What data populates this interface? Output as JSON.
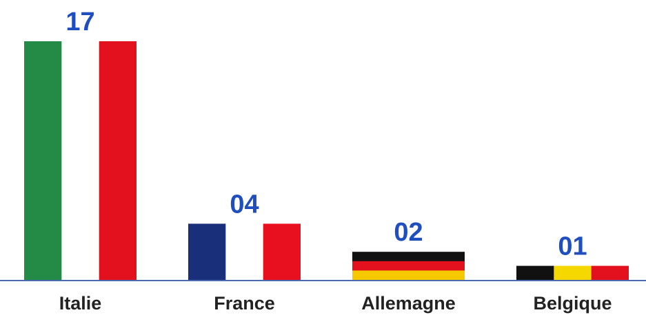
{
  "chart_data": {
    "type": "bar",
    "categories": [
      "Italie",
      "France",
      "Allemagne",
      "Belgique"
    ],
    "values": [
      17,
      4,
      2,
      1
    ],
    "value_labels": [
      "17",
      "04",
      "02",
      "01"
    ],
    "stripe_direction": [
      "vertical",
      "vertical",
      "horizontal",
      "vertical"
    ],
    "bar_colors": [
      [
        "#238b45",
        "#ffffff",
        "#e3101e"
      ],
      [
        "#1a2f7a",
        "#ffffff",
        "#e8101e"
      ],
      [
        "#111111",
        "#e3101e",
        "#f5c800"
      ],
      [
        "#111111",
        "#f5d800",
        "#e3101e"
      ]
    ],
    "ylim": [
      0,
      17
    ],
    "axis_color": "#4a6bb0"
  }
}
